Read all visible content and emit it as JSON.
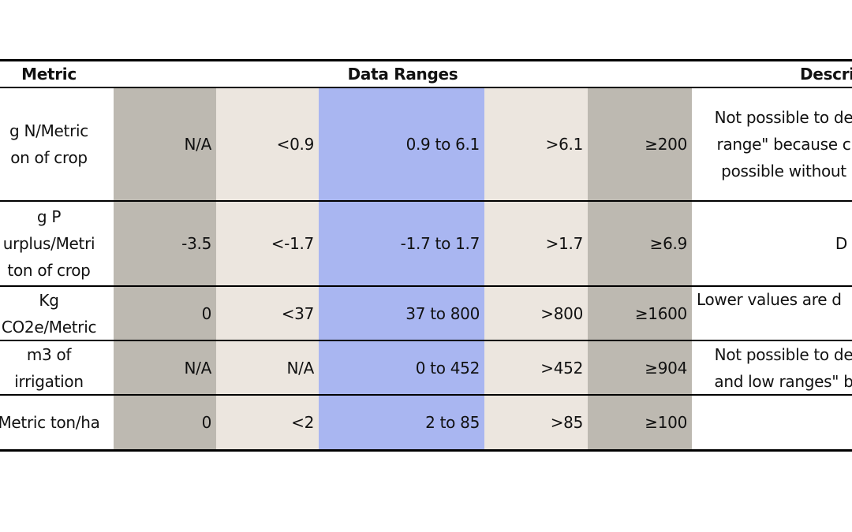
{
  "header": {
    "metric": "Metric",
    "data_ranges": "Data Ranges",
    "description": "Descri"
  },
  "rows": [
    {
      "metric": "g N/Metric\non of crop",
      "cells": [
        "N/A",
        "<0.9",
        "0.9 to 6.1",
        ">6.1",
        "≥200"
      ],
      "description": "Not possible to de\nrange\" because c\npossible without"
    },
    {
      "metric": "g P\nurplus/Metri\nton of crop",
      "cells": [
        "-3.5",
        "<-1.7",
        "-1.7 to 1.7",
        ">1.7",
        "≥6.9"
      ],
      "description": "D"
    },
    {
      "metric": "Kg\nCO2e/Metric",
      "cells": [
        "0",
        "<37",
        "37 to 800",
        ">800",
        "≥1600"
      ],
      "description": "Lower values are d"
    },
    {
      "metric": "m3 of\nirrigation",
      "cells": [
        "N/A",
        "N/A",
        "0 to 452",
        ">452",
        "≥904"
      ],
      "description": "Not possible to de\nand low ranges\" b"
    },
    {
      "metric": "Metric ton/ha",
      "cells": [
        "0",
        "<2",
        "2  to 85",
        ">85",
        "≥100"
      ],
      "description": ""
    }
  ]
}
